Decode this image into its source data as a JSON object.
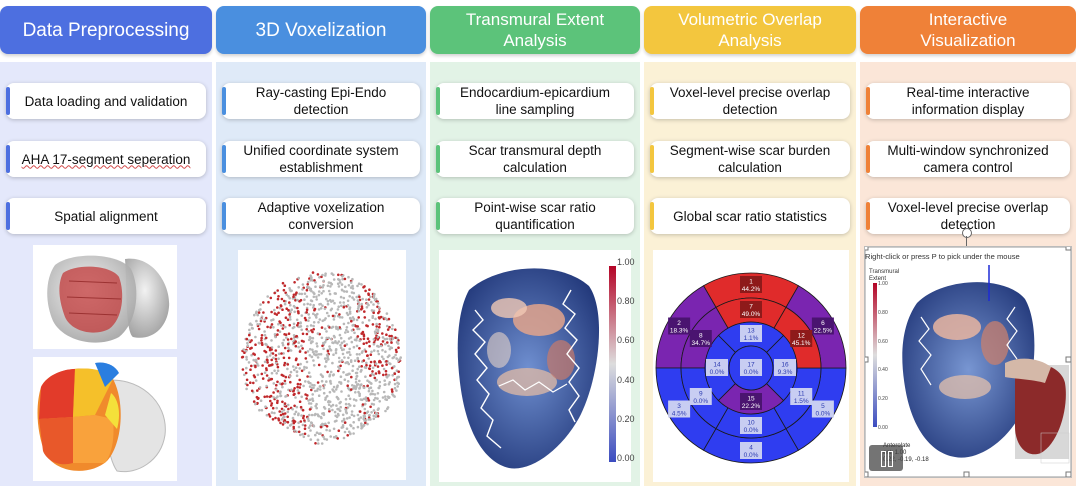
{
  "columns": [
    {
      "title": "Data Preprocessing",
      "color": "#4d6fe0",
      "bg": "#e4e8fb",
      "steps": [
        "Data loading and validation",
        "AHA 17-segment seperation",
        "Spatial alignment"
      ]
    },
    {
      "title": "3D Voxelization",
      "color": "#4a8fdf",
      "bg": "#dfeaf8",
      "steps": [
        "Ray-casting Epi-Endo\ndetection",
        "Unified coordinate system\nestablishment",
        "Adaptive voxelization\nconversion"
      ]
    },
    {
      "title": "Transmural Extent\nAnalysis",
      "color": "#5cc37a",
      "bg": "#e2f3e6",
      "steps": [
        "Endocardium-epicardium\nline sampling",
        "Scar transmural depth\ncalculation",
        "Point-wise scar ratio\nquantification"
      ]
    },
    {
      "title": "Volumetric Overlap\nAnalysis",
      "color": "#f3c63e",
      "bg": "#fbf1d6",
      "steps": [
        "Voxel-level precise overlap\ndetection",
        "Segment-wise scar burden\ncalculation",
        "Global scar ratio statistics"
      ]
    },
    {
      "title": "Interactive\nVisualization",
      "color": "#ef8138",
      "bg": "#fbe6d8",
      "steps": [
        "Real-time interactive\ninformation display",
        "Multi-window synchronized\ncamera control",
        "Voxel-level precise overlap\ndetection"
      ]
    }
  ],
  "colorbar": {
    "ticks": [
      "1.00",
      "0.80",
      "0.60",
      "0.40",
      "0.20",
      "0.00"
    ]
  },
  "bullseye": {
    "segments": [
      {
        "id": "1",
        "value": "44.2%",
        "ratio": 0.442
      },
      {
        "id": "2",
        "value": "18.3%",
        "ratio": 0.183
      },
      {
        "id": "3",
        "value": "4.5%",
        "ratio": 0.045
      },
      {
        "id": "4",
        "value": "0.0%",
        "ratio": 0.0
      },
      {
        "id": "5",
        "value": "0.0%",
        "ratio": 0.0
      },
      {
        "id": "6",
        "value": "22.5%",
        "ratio": 0.225
      },
      {
        "id": "7",
        "value": "49.0%",
        "ratio": 0.49
      },
      {
        "id": "8",
        "value": "34.7%",
        "ratio": 0.347
      },
      {
        "id": "9",
        "value": "0.0%",
        "ratio": 0.0
      },
      {
        "id": "10",
        "value": "0.0%",
        "ratio": 0.0
      },
      {
        "id": "11",
        "value": "1.5%",
        "ratio": 0.015
      },
      {
        "id": "12",
        "value": "45.1%",
        "ratio": 0.451
      },
      {
        "id": "13",
        "value": "1.1%",
        "ratio": 0.011
      },
      {
        "id": "14",
        "value": "0.0%",
        "ratio": 0.0
      },
      {
        "id": "15",
        "value": "22.2%",
        "ratio": 0.222
      },
      {
        "id": "16",
        "value": "9.3%",
        "ratio": 0.093
      },
      {
        "id": "17",
        "value": "0.0%",
        "ratio": 0.0
      }
    ]
  },
  "viewer": {
    "hint": "Right-click or press P to pick under the mouse",
    "legend_title": "Transmural\nExtent",
    "ticks": [
      "1.00",
      "0.80",
      "0.60",
      "0.40",
      "0.20",
      "0.00"
    ],
    "info_lines": [
      "Anterolate",
      "ent: 1.00",
      "0.22, -0.19, -0.18"
    ],
    "pause_icon": "pause-icon"
  }
}
